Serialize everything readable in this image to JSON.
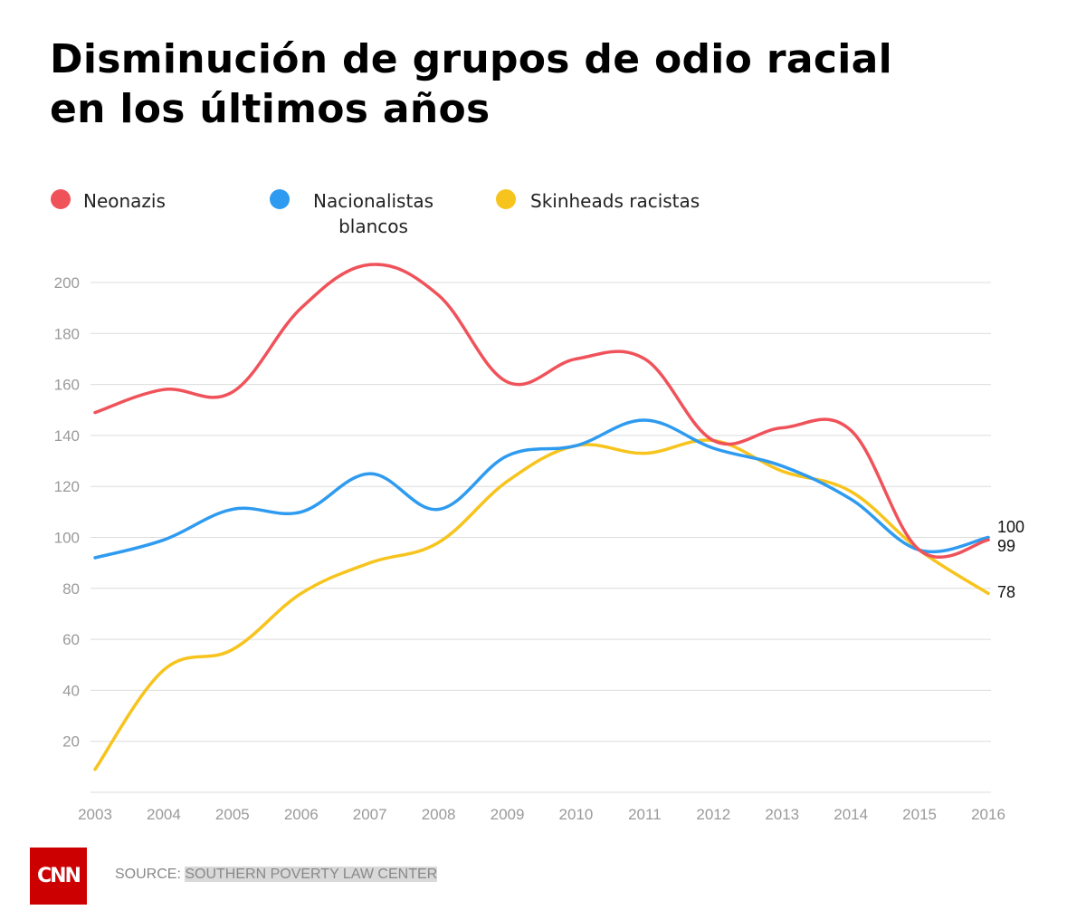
{
  "chart_data": {
    "type": "line",
    "title": "Disminución de grupos de odio racial en los últimos años",
    "title_lines": [
      "Disminución de grupos de odio racial",
      "en los últimos años"
    ],
    "x": [
      "2003",
      "2004",
      "2005",
      "2006",
      "2007",
      "2008",
      "2009",
      "2010",
      "2011",
      "2012",
      "2013",
      "2014",
      "2015",
      "2016"
    ],
    "ylim": [
      0,
      210
    ],
    "yticks": [
      20,
      40,
      60,
      80,
      100,
      120,
      140,
      160,
      180,
      200
    ],
    "grid": true,
    "legend_position": "top",
    "series": [
      {
        "name": "Neonazis",
        "color": "#f0525a",
        "values": [
          149,
          158,
          157,
          190,
          207,
          195,
          161,
          170,
          170,
          138,
          143,
          142,
          95,
          99
        ]
      },
      {
        "name": "Nacionalistas blancos",
        "color": "#2e9bf0",
        "values": [
          92,
          99,
          111,
          110,
          125,
          111,
          132,
          136,
          146,
          135,
          128,
          115,
          95,
          100
        ]
      },
      {
        "name": "Skinheads racistas",
        "color": "#f7c41d",
        "values": [
          9,
          48,
          56,
          78,
          90,
          98,
          122,
          136,
          133,
          138,
          126,
          118,
          95,
          78
        ]
      }
    ],
    "legend_labels": {
      "neonazis": "Neonazis",
      "nacionalistas_1": "Nacionalistas",
      "nacionalistas_2": "blancos",
      "skinheads": "Skinheads racistas"
    },
    "end_labels": [
      "100",
      "99",
      "78"
    ]
  },
  "footer": {
    "logo": "CNN",
    "source_prefix": "SOURCE: ",
    "source_name": "SOUTHERN POVERTY LAW CENTER"
  },
  "colors": {
    "grid": "#dcdcdc",
    "axis_text": "#9a9a9a",
    "end_label": "#111111",
    "brand": "#cc0000"
  }
}
